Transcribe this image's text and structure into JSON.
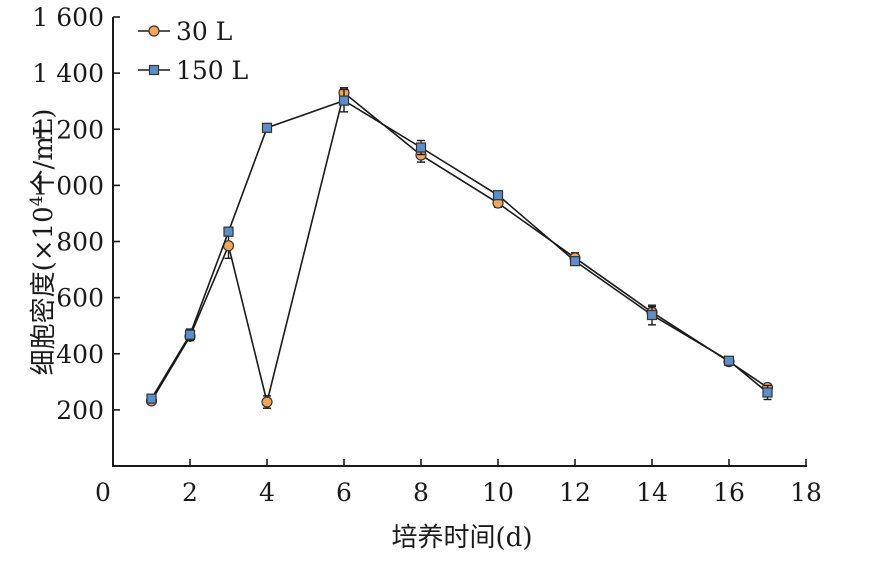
{
  "chart_data": {
    "type": "line",
    "xlabel": "培养时间(d)",
    "ylabel": "细胞密度(×10⁴个/mL)",
    "ylabel_parts": {
      "main": "细胞密度(",
      "times_ten": "×10",
      "exp": "4",
      "unit": "个/mL)"
    },
    "xlim": [
      0,
      18
    ],
    "ylim": [
      0,
      1600
    ],
    "x_ticks": [
      0,
      2,
      4,
      6,
      8,
      10,
      12,
      14,
      16,
      18
    ],
    "x_tick_labels": [
      "0",
      "2",
      "4",
      "6",
      "8",
      "10",
      "12",
      "14",
      "16",
      "18"
    ],
    "y_ticks": [
      200,
      400,
      600,
      800,
      1000,
      1200,
      1400,
      1600
    ],
    "y_tick_labels": [
      "200",
      "400",
      "600",
      "800",
      "1 000",
      "1 200",
      "1 400",
      "1 600"
    ],
    "grid": false,
    "legend_position": "top-left",
    "series": [
      {
        "name": "30 L",
        "marker": "circle",
        "color": "#F4A556",
        "x": [
          1,
          2,
          3,
          4,
          6,
          8,
          10,
          12,
          14,
          16,
          17
        ],
        "y": [
          232,
          462,
          785,
          228,
          1330,
          1108,
          937,
          742,
          548,
          372,
          280
        ],
        "y_corrected_note": "",
        "err": [
          10,
          15,
          45,
          22,
          18,
          25,
          15,
          18,
          20,
          12,
          10
        ]
      },
      {
        "name": "150 L",
        "marker": "square",
        "color": "#5B8FCC",
        "x": [
          1,
          2,
          3,
          4,
          6,
          8,
          10,
          12,
          14,
          16,
          17
        ],
        "y": [
          240,
          468,
          835,
          1205,
          1302,
          1135,
          965,
          730,
          538,
          375,
          262
        ],
        "err": [
          12,
          20,
          15,
          15,
          40,
          25,
          12,
          12,
          35,
          12,
          25
        ]
      }
    ]
  }
}
